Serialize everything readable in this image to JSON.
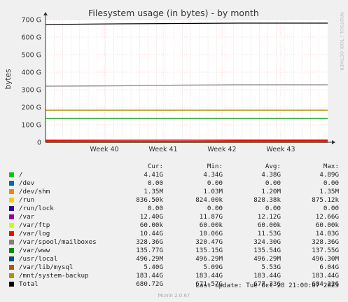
{
  "chart_data": {
    "type": "line",
    "title": "Filesystem usage (in bytes) - by month",
    "ylabel": "bytes",
    "side_label": "RRDTOOL / TOBI OETIKER",
    "ylim": [
      0,
      700
    ],
    "y_unit": "G",
    "y_ticks": [
      {
        "value": 0,
        "label": "0"
      },
      {
        "value": 100,
        "label": "100 G"
      },
      {
        "value": 200,
        "label": "200 G"
      },
      {
        "value": 300,
        "label": "300 G"
      },
      {
        "value": 400,
        "label": "400 G"
      },
      {
        "value": 500,
        "label": "500 G"
      },
      {
        "value": 600,
        "label": "600 G"
      },
      {
        "value": 700,
        "label": "700 G"
      }
    ],
    "x_ticks": [
      "Week 40",
      "Week 41",
      "Week 42",
      "Week 43"
    ],
    "series": [
      {
        "name": "/",
        "color": "#00cc00",
        "values": [
          4.4,
          4.4,
          4.4,
          4.4
        ]
      },
      {
        "name": "/dev",
        "color": "#0066b3",
        "values": [
          0,
          0,
          0,
          0
        ]
      },
      {
        "name": "/dev/shm",
        "color": "#ff8000",
        "values": [
          0.001,
          0.001,
          0.001,
          0.001
        ]
      },
      {
        "name": "/run",
        "color": "#ffcc00",
        "values": [
          0.0008,
          0.0008,
          0.0008,
          0.0008
        ]
      },
      {
        "name": "/run/lock",
        "color": "#330099",
        "values": [
          0,
          0,
          0,
          0
        ]
      },
      {
        "name": "/var",
        "color": "#990099",
        "values": [
          12.1,
          12.1,
          12.1,
          12.4
        ]
      },
      {
        "name": "/var/ftp",
        "color": "#ccff00",
        "values": [
          0,
          0,
          0,
          0
        ]
      },
      {
        "name": "/var/log",
        "color": "#ff0000",
        "values": [
          11,
          11.5,
          12,
          10.4
        ]
      },
      {
        "name": "/var/spool/mailboxes",
        "color": "#808080",
        "values": [
          320,
          322,
          326,
          328
        ]
      },
      {
        "name": "/var/www",
        "color": "#008f00",
        "values": [
          135.5,
          135.5,
          135.6,
          135.8
        ]
      },
      {
        "name": "/usr/local",
        "color": "#00487d",
        "values": [
          0.5,
          0.5,
          0.5,
          0.5
        ]
      },
      {
        "name": "/var/lib/mysql",
        "color": "#b35a00",
        "values": [
          5.5,
          5.6,
          5.7,
          5.4
        ]
      },
      {
        "name": "/mnt/system-backup",
        "color": "#b38f00",
        "values": [
          183.4,
          183.4,
          183.4,
          183.4
        ]
      },
      {
        "name": "Total",
        "color": "#000000",
        "values": [
          672,
          676,
          678,
          680
        ]
      }
    ]
  },
  "legend": {
    "headers": {
      "cur": "Cur:",
      "min": "Min:",
      "avg": "Avg:",
      "max": "Max:"
    },
    "rows": [
      {
        "name": "/",
        "color": "#00cc00",
        "cur": "4.41G",
        "min": "4.34G",
        "avg": "4.38G",
        "max": "4.89G"
      },
      {
        "name": "/dev",
        "color": "#0066b3",
        "cur": "0.00",
        "min": "0.00",
        "avg": "0.00",
        "max": "0.00"
      },
      {
        "name": "/dev/shm",
        "color": "#ff8000",
        "cur": "1.35M",
        "min": "1.03M",
        "avg": "1.20M",
        "max": "1.35M"
      },
      {
        "name": "/run",
        "color": "#ffcc00",
        "cur": "836.50k",
        "min": "824.00k",
        "avg": "828.38k",
        "max": "875.12k"
      },
      {
        "name": "/run/lock",
        "color": "#330099",
        "cur": "0.00",
        "min": "0.00",
        "avg": "0.00",
        "max": "0.00"
      },
      {
        "name": "/var",
        "color": "#990099",
        "cur": "12.40G",
        "min": "11.87G",
        "avg": "12.12G",
        "max": "12.66G"
      },
      {
        "name": "/var/ftp",
        "color": "#ccff00",
        "cur": "60.00k",
        "min": "60.00k",
        "avg": "60.00k",
        "max": "60.00k"
      },
      {
        "name": "/var/log",
        "color": "#ff0000",
        "cur": "10.44G",
        "min": "10.06G",
        "avg": "11.53G",
        "max": "14.03G"
      },
      {
        "name": "/var/spool/mailboxes",
        "color": "#808080",
        "cur": "328.36G",
        "min": "320.47G",
        "avg": "324.30G",
        "max": "328.36G"
      },
      {
        "name": "/var/www",
        "color": "#008f00",
        "cur": "135.77G",
        "min": "135.15G",
        "avg": "135.54G",
        "max": "137.55G"
      },
      {
        "name": "/usr/local",
        "color": "#00487d",
        "cur": "496.29M",
        "min": "496.29M",
        "avg": "496.29M",
        "max": "496.30M"
      },
      {
        "name": "/var/lib/mysql",
        "color": "#b35a00",
        "cur": "5.40G",
        "min": "5.09G",
        "avg": "5.53G",
        "max": "6.04G"
      },
      {
        "name": "/mnt/system-backup",
        "color": "#b38f00",
        "cur": "183.44G",
        "min": "183.44G",
        "avg": "183.44G",
        "max": "183.44G"
      },
      {
        "name": "Total",
        "color": "#000000",
        "cur": "680.72G",
        "min": "671.57G",
        "avg": "677.33G",
        "max": "684.22G"
      }
    ]
  },
  "footer": {
    "last_update": "Last update: Tue Oct 28 21:00:07 2025",
    "version": "Munin 2.0.67"
  }
}
